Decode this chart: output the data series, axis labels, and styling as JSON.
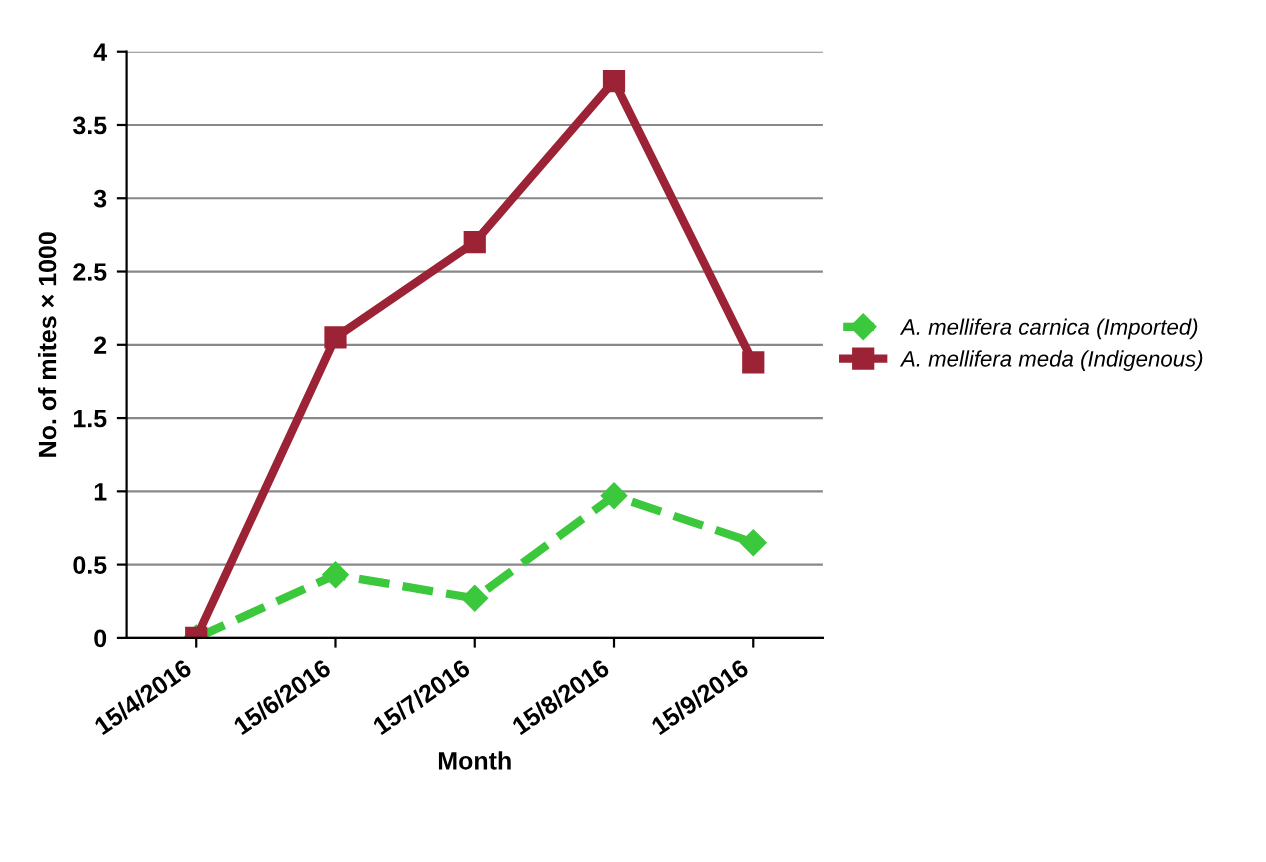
{
  "chart_data": {
    "type": "line",
    "xlabel": "Month",
    "ylabel": "No. of mites × 1000",
    "categories": [
      "15/4/2016",
      "15/6/2016",
      "15/7/2016",
      "15/8/2016",
      "15/9/2016"
    ],
    "series": [
      {
        "name": "A. mellifera carnica (Imported)",
        "color": "#3cc83c",
        "marker": "diamond",
        "line_style": "dashed",
        "values": [
          0,
          0.43,
          0.27,
          0.97,
          0.65
        ]
      },
      {
        "name": "A. mellifera meda (Indigenous)",
        "color": "#9b2335",
        "marker": "square",
        "line_style": "solid",
        "values": [
          0,
          2.05,
          2.7,
          3.8,
          1.88
        ]
      }
    ],
    "ylim": [
      0,
      4
    ],
    "yticks": [
      0,
      0.5,
      1,
      1.5,
      2,
      2.5,
      3,
      3.5,
      4
    ],
    "grid": "y",
    "legend": "right"
  }
}
